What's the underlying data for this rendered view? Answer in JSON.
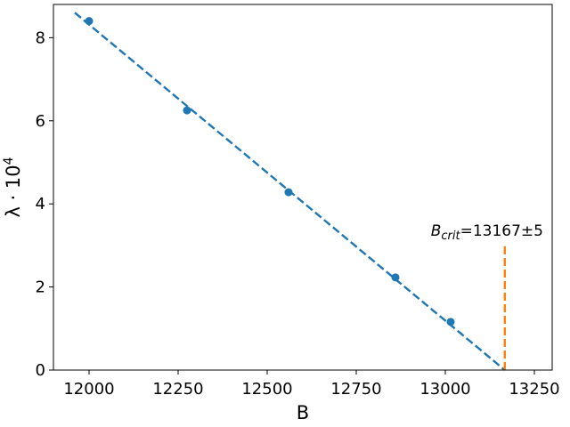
{
  "chart_data": {
    "type": "scatter",
    "xlabel": "B",
    "ylabel_base": "λ · 10",
    "ylabel_exp": "4",
    "xlim": [
      11900,
      13300
    ],
    "ylim": [
      0,
      8.8
    ],
    "xticks": [
      12000,
      12250,
      12500,
      12750,
      13000,
      13250
    ],
    "yticks": [
      0,
      2,
      4,
      6,
      8
    ],
    "grid": false,
    "colors": {
      "points": "#1f77b4",
      "fit": "#1f77b4",
      "critical": "#ff7f0e"
    },
    "series": [
      {
        "kind": "points",
        "x": [
          12000,
          12275,
          12560,
          12860,
          13015
        ],
        "y": [
          8.4,
          6.25,
          4.28,
          2.23,
          1.16
        ]
      },
      {
        "kind": "fit-line",
        "style": "dashed",
        "x": [
          11960,
          13167
        ],
        "y": [
          8.6,
          0
        ]
      },
      {
        "kind": "critical-line",
        "style": "dashed",
        "x": [
          13167,
          13167
        ],
        "y": [
          0,
          3.0
        ]
      }
    ],
    "annotation": {
      "var": "B",
      "sub": "crit",
      "rest": "=13167±5",
      "x": 13167,
      "y": 3.0
    }
  }
}
